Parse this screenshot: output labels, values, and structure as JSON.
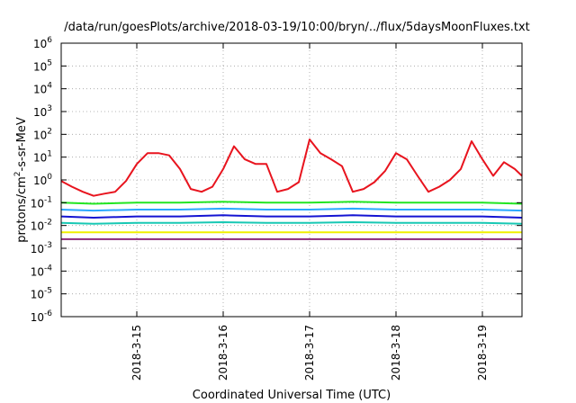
{
  "chart_data": {
    "type": "line",
    "title": "/data/run/goesPlots/archive/2018-03-19/10:00/bryn/../flux/5daysMoonFluxes.txt",
    "xlabel": "Coordinated Universal Time (UTC)",
    "ylabel": {
      "prefix": "protons/cm",
      "sup": "2",
      "suffix": "-s-sr-MeV"
    },
    "y_scale": "log",
    "ylim_exp": [
      -6,
      6
    ],
    "xlim": [
      "2018-03-14T03:00",
      "2018-03-19T11:00"
    ],
    "x_ticks": [
      {
        "label": "2018-3-15",
        "t": "2018-03-15T00:00"
      },
      {
        "label": "2018-3-16",
        "t": "2018-03-16T00:00"
      },
      {
        "label": "2018-3-17",
        "t": "2018-03-17T00:00"
      },
      {
        "label": "2018-3-18",
        "t": "2018-03-18T00:00"
      },
      {
        "label": "2018-3-19",
        "t": "2018-03-19T00:00"
      }
    ],
    "y_tick_exponents": [
      -6,
      -5,
      -4,
      -3,
      -2,
      -1,
      0,
      1,
      2,
      3,
      4,
      5,
      6
    ],
    "grid": true,
    "series": [
      {
        "color": "#e8141e",
        "x": [
          "2018-03-14T03:00",
          "2018-03-14T06:00",
          "2018-03-14T09:00",
          "2018-03-14T12:00",
          "2018-03-14T15:00",
          "2018-03-14T18:00",
          "2018-03-14T21:00",
          "2018-03-15T00:00",
          "2018-03-15T03:00",
          "2018-03-15T06:00",
          "2018-03-15T09:00",
          "2018-03-15T12:00",
          "2018-03-15T15:00",
          "2018-03-15T18:00",
          "2018-03-15T21:00",
          "2018-03-16T00:00",
          "2018-03-16T03:00",
          "2018-03-16T06:00",
          "2018-03-16T09:00",
          "2018-03-16T12:00",
          "2018-03-16T15:00",
          "2018-03-16T18:00",
          "2018-03-16T21:00",
          "2018-03-17T00:00",
          "2018-03-17T03:00",
          "2018-03-17T06:00",
          "2018-03-17T09:00",
          "2018-03-17T12:00",
          "2018-03-17T15:00",
          "2018-03-17T18:00",
          "2018-03-17T21:00",
          "2018-03-18T00:00",
          "2018-03-18T03:00",
          "2018-03-18T06:00",
          "2018-03-18T09:00",
          "2018-03-18T12:00",
          "2018-03-18T15:00",
          "2018-03-18T18:00",
          "2018-03-18T21:00",
          "2018-03-19T00:00",
          "2018-03-19T03:00",
          "2018-03-19T06:00",
          "2018-03-19T09:00",
          "2018-03-19T11:00"
        ],
        "values": [
          0.9,
          0.5,
          0.3,
          0.2,
          0.25,
          0.3,
          0.9,
          5,
          15,
          15,
          12,
          3,
          0.4,
          0.3,
          0.5,
          3,
          30,
          8,
          5,
          5,
          0.3,
          0.4,
          0.8,
          60,
          15,
          8,
          4,
          0.3,
          0.4,
          0.8,
          2.5,
          15,
          8,
          1.5,
          0.3,
          0.5,
          1,
          3,
          50,
          8,
          1.5,
          6,
          3,
          1.5
        ]
      },
      {
        "color": "#22e622",
        "x": [
          "2018-03-14T03:00",
          "2018-03-14T12:00",
          "2018-03-15T00:00",
          "2018-03-15T12:00",
          "2018-03-16T00:00",
          "2018-03-16T12:00",
          "2018-03-17T00:00",
          "2018-03-17T12:00",
          "2018-03-18T00:00",
          "2018-03-18T12:00",
          "2018-03-19T00:00",
          "2018-03-19T11:00"
        ],
        "values": [
          0.1,
          0.09,
          0.1,
          0.1,
          0.11,
          0.1,
          0.1,
          0.11,
          0.1,
          0.1,
          0.1,
          0.09
        ]
      },
      {
        "color": "#2aa8ff",
        "x": [
          "2018-03-14T03:00",
          "2018-03-14T12:00",
          "2018-03-15T00:00",
          "2018-03-15T12:00",
          "2018-03-16T00:00",
          "2018-03-16T12:00",
          "2018-03-17T00:00",
          "2018-03-17T12:00",
          "2018-03-18T00:00",
          "2018-03-18T12:00",
          "2018-03-19T00:00",
          "2018-03-19T11:00"
        ],
        "values": [
          0.05,
          0.045,
          0.05,
          0.05,
          0.055,
          0.05,
          0.05,
          0.055,
          0.05,
          0.05,
          0.05,
          0.045
        ]
      },
      {
        "color": "#1414d2",
        "x": [
          "2018-03-14T03:00",
          "2018-03-14T12:00",
          "2018-03-15T00:00",
          "2018-03-15T12:00",
          "2018-03-16T00:00",
          "2018-03-16T12:00",
          "2018-03-17T00:00",
          "2018-03-17T12:00",
          "2018-03-18T00:00",
          "2018-03-18T12:00",
          "2018-03-19T00:00",
          "2018-03-19T11:00"
        ],
        "values": [
          0.025,
          0.022,
          0.025,
          0.025,
          0.028,
          0.025,
          0.025,
          0.028,
          0.025,
          0.025,
          0.025,
          0.022
        ]
      },
      {
        "color": "#18c8b4",
        "x": [
          "2018-03-14T03:00",
          "2018-03-14T12:00",
          "2018-03-15T00:00",
          "2018-03-15T12:00",
          "2018-03-16T00:00",
          "2018-03-16T12:00",
          "2018-03-17T00:00",
          "2018-03-17T12:00",
          "2018-03-18T00:00",
          "2018-03-18T12:00",
          "2018-03-19T00:00",
          "2018-03-19T11:00"
        ],
        "values": [
          0.013,
          0.012,
          0.013,
          0.013,
          0.014,
          0.013,
          0.013,
          0.014,
          0.013,
          0.013,
          0.013,
          0.012
        ]
      },
      {
        "color": "#f0f000",
        "x": [
          "2018-03-14T03:00",
          "2018-03-14T12:00",
          "2018-03-15T00:00",
          "2018-03-15T12:00",
          "2018-03-16T00:00",
          "2018-03-16T12:00",
          "2018-03-17T00:00",
          "2018-03-17T12:00",
          "2018-03-18T00:00",
          "2018-03-18T12:00",
          "2018-03-19T00:00",
          "2018-03-19T11:00"
        ],
        "values": [
          0.005,
          0.005,
          0.005,
          0.005,
          0.005,
          0.005,
          0.005,
          0.005,
          0.005,
          0.005,
          0.005,
          0.005
        ]
      },
      {
        "color": "#8c2878",
        "x": [
          "2018-03-14T03:00",
          "2018-03-14T12:00",
          "2018-03-15T00:00",
          "2018-03-15T12:00",
          "2018-03-16T00:00",
          "2018-03-16T12:00",
          "2018-03-17T00:00",
          "2018-03-17T12:00",
          "2018-03-18T00:00",
          "2018-03-18T12:00",
          "2018-03-19T00:00",
          "2018-03-19T11:00"
        ],
        "values": [
          0.0025,
          0.0025,
          0.0025,
          0.0025,
          0.0025,
          0.0025,
          0.0025,
          0.0025,
          0.0025,
          0.0025,
          0.0025,
          0.0025
        ]
      }
    ]
  }
}
